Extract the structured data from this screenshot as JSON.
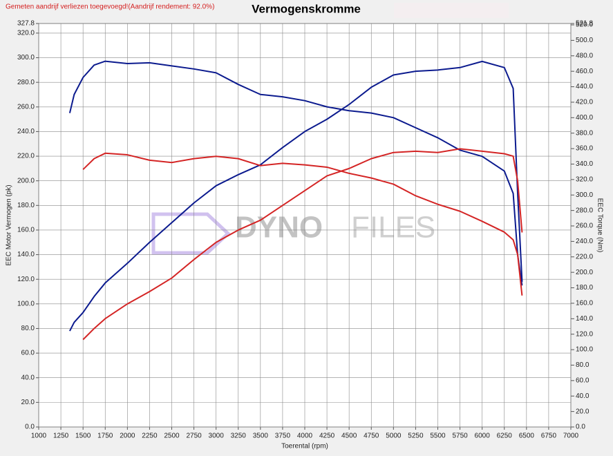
{
  "chart_data": {
    "type": "line",
    "title": "Vermogenskromme",
    "note": "Gemeten aandrijf verliezen toegevoegd!(Aandrijf rendement: 92.0%)",
    "watermark": [
      "DYNO",
      "FILES"
    ],
    "x_label": "Toerental (rpm)",
    "y_label": "EEC Motor Vermogen (pk)",
    "y2_label": "EEC Torque (Nm)",
    "grid": true,
    "x": [
      1350,
      1400,
      1500,
      1625,
      1750,
      2000,
      2250,
      2500,
      2750,
      3000,
      3250,
      3500,
      3750,
      4000,
      4250,
      4500,
      4750,
      5000,
      5250,
      5500,
      5750,
      6000,
      6250,
      6350,
      6400,
      6450
    ],
    "series": [
      {
        "color": "#0b1a8e",
        "values": [
          78,
          85,
          93,
          106,
          117,
          133,
          150,
          166,
          182,
          196,
          205,
          213,
          227,
          240,
          250,
          262,
          276,
          286,
          289,
          290,
          292,
          297,
          292,
          275,
          190,
          118
        ]
      },
      {
        "color": "#0b1a8e",
        "axis": "y2",
        "values": [
          406,
          430,
          452,
          468,
          473,
          470,
          471,
          467,
          463,
          458,
          443,
          430,
          427,
          422,
          414,
          409,
          406,
          400,
          387,
          374,
          358,
          350,
          331,
          302,
          223,
          183
        ]
      },
      {
        "color": "#d42424",
        "values": [
          null,
          null,
          71,
          80,
          88,
          100,
          110,
          121,
          136,
          150,
          160,
          168,
          180,
          192,
          204,
          210,
          218,
          223,
          224,
          223,
          226,
          224,
          222,
          220,
          200,
          158
        ]
      },
      {
        "color": "#d42424",
        "axis": "y2",
        "values": [
          null,
          null,
          333,
          347,
          354,
          352,
          345,
          342,
          347,
          350,
          347,
          338,
          341,
          339,
          336,
          328,
          322,
          314,
          299,
          288,
          279,
          266,
          252,
          242,
          223,
          170
        ]
      }
    ],
    "xlim": [
      1000,
      7000
    ],
    "xticks": [
      1000,
      1250,
      1500,
      1750,
      2000,
      2250,
      2500,
      2750,
      3000,
      3250,
      3500,
      3750,
      4000,
      4250,
      4500,
      4750,
      5000,
      5250,
      5500,
      5750,
      6000,
      6250,
      6500,
      6750,
      7000
    ],
    "ylim": [
      0,
      327.8
    ],
    "yticks": [
      {
        "value": 0,
        "label": "0.0"
      },
      {
        "value": 20,
        "label": "20.0"
      },
      {
        "value": 40,
        "label": "40.0"
      },
      {
        "value": 60,
        "label": "60.0"
      },
      {
        "value": 80,
        "label": "80.0"
      },
      {
        "value": 100,
        "label": "100.0"
      },
      {
        "value": 120,
        "label": "120.0"
      },
      {
        "value": 140,
        "label": "140.0"
      },
      {
        "value": 160,
        "label": "160.0"
      },
      {
        "value": 180,
        "label": "180.0"
      },
      {
        "value": 200,
        "label": "200.0"
      },
      {
        "value": 220,
        "label": "220.0"
      },
      {
        "value": 240,
        "label": "240.0"
      },
      {
        "value": 260,
        "label": "260.0"
      },
      {
        "value": 280,
        "label": "280.0"
      },
      {
        "value": 300,
        "label": "300.0"
      },
      {
        "value": 320,
        "label": "320.0"
      },
      327.8
    ],
    "y2lim": [
      0,
      521.8
    ],
    "y2ticks": [
      {
        "value": 0,
        "label": "0.0"
      },
      {
        "value": 20,
        "label": "20.0"
      },
      {
        "value": 40,
        "label": "40.0"
      },
      {
        "value": 60,
        "label": "60.0"
      },
      {
        "value": 80,
        "label": "80.0"
      },
      {
        "value": 100,
        "label": "100.0"
      },
      {
        "value": 120,
        "label": "120.0"
      },
      {
        "value": 140,
        "label": "140.0"
      },
      {
        "value": 160,
        "label": "160.0"
      },
      {
        "value": 180,
        "label": "180.0"
      },
      {
        "value": 200,
        "label": "200.0"
      },
      {
        "value": 220,
        "label": "220.0"
      },
      {
        "value": 240,
        "label": "240.0"
      },
      {
        "value": 260,
        "label": "260.0"
      },
      {
        "value": 280,
        "label": "280.0"
      },
      {
        "value": 300,
        "label": "300.0"
      },
      {
        "value": 320,
        "label": "320.0"
      },
      {
        "value": 340,
        "label": "340.0"
      },
      {
        "value": 360,
        "label": "360.0"
      },
      {
        "value": 380,
        "label": "380.0"
      },
      {
        "value": 400,
        "label": "400.0"
      },
      {
        "value": 420,
        "label": "420.0"
      },
      {
        "value": 440,
        "label": "440.0"
      },
      {
        "value": 460,
        "label": "460.0"
      },
      {
        "value": 480,
        "label": "480.0"
      },
      {
        "value": 500,
        "label": "500.0"
      },
      {
        "value": 520,
        "label": "520.0"
      },
      521.8
    ]
  }
}
